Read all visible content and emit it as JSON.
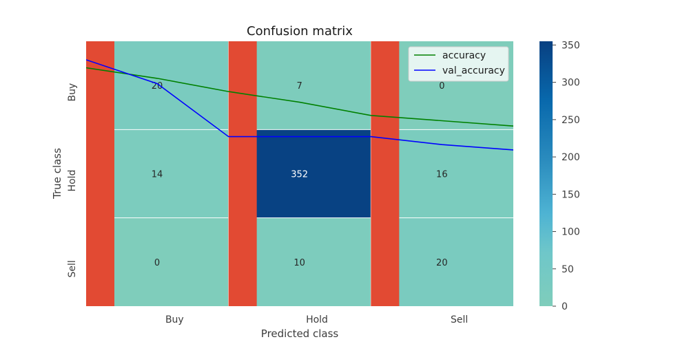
{
  "chart_data": [
    {
      "type": "heatmap",
      "title": "Confusion matrix",
      "xlabel": "Predicted class",
      "ylabel": "True class",
      "x_categories": [
        "Buy",
        "Hold",
        "Sell"
      ],
      "y_categories": [
        "Buy",
        "Hold",
        "Sell"
      ],
      "values": [
        [
          20,
          7,
          0
        ],
        [
          14,
          352,
          16
        ],
        [
          0,
          10,
          20
        ]
      ],
      "colorbar": {
        "min": 0,
        "max": 355,
        "ticks": [
          0,
          50,
          100,
          150,
          200,
          250,
          300,
          350
        ]
      },
      "colors": {
        "low": "#7fcdbb",
        "mid": "#41b6c4",
        "high": "#084081",
        "stripe": "#e24a33"
      }
    },
    {
      "type": "line",
      "x": [
        0,
        1,
        2,
        3,
        4,
        5,
        6
      ],
      "ylim": [
        0,
        1
      ],
      "series": [
        {
          "name": "accuracy",
          "color": "#008000",
          "values": [
            0.9,
            0.86,
            0.81,
            0.77,
            0.72,
            0.7,
            0.68
          ]
        },
        {
          "name": "val_accuracy",
          "color": "#0000ff",
          "values": [
            0.93,
            0.84,
            0.64,
            0.64,
            0.64,
            0.61,
            0.59
          ]
        }
      ],
      "legend": "top-right"
    }
  ]
}
